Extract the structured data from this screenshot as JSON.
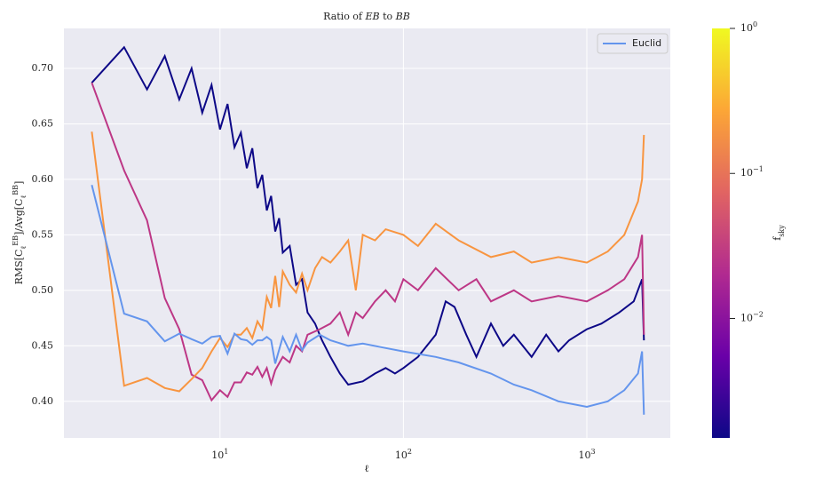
{
  "chart_data": {
    "type": "line",
    "title": "Ratio of ^{EB} to ^{BB}",
    "xlabel": "ℓ",
    "ylabel": "RMS[C_{ℓ}^{EB}]/Avg[C_{ℓ}^{BB}]",
    "xscale": "log",
    "xlim": [
      1.41,
      2850
    ],
    "ylim": [
      0.367,
      0.736
    ],
    "xticks": [
      {
        "value": 10,
        "label": "10^{1}"
      },
      {
        "value": 100,
        "label": "10^{2}"
      },
      {
        "value": 1000,
        "label": "10^{3}"
      }
    ],
    "yticks": [
      {
        "value": 0.4,
        "label": "0.40"
      },
      0.45,
      {
        "value": 0.5,
        "label": "0.50"
      },
      0.55,
      {
        "value": 0.6,
        "label": "0.60"
      },
      0.65,
      {
        "value": 0.7,
        "label": "0.70"
      }
    ],
    "grid": true,
    "legend": "upper right",
    "series": [
      {
        "color": "#0d0887",
        "x": [
          2,
          3,
          4,
          5,
          6,
          7,
          8,
          9,
          10,
          11,
          12,
          13,
          14,
          15,
          16,
          17,
          18,
          19,
          20,
          21,
          22,
          24,
          26,
          28,
          30,
          33,
          36,
          40,
          45,
          50,
          60,
          70,
          80,
          90,
          100,
          120,
          150,
          170,
          190,
          220,
          250,
          300,
          350,
          400,
          500,
          600,
          700,
          800,
          1000,
          1200,
          1500,
          1800,
          2000,
          2048
        ],
        "values": [
          0.687,
          0.719,
          0.681,
          0.711,
          0.672,
          0.7,
          0.66,
          0.685,
          0.645,
          0.668,
          0.629,
          0.642,
          0.61,
          0.628,
          0.592,
          0.604,
          0.572,
          0.585,
          0.553,
          0.565,
          0.534,
          0.54,
          0.505,
          0.51,
          0.48,
          0.47,
          0.455,
          0.44,
          0.425,
          0.415,
          0.418,
          0.425,
          0.43,
          0.425,
          0.43,
          0.44,
          0.46,
          0.49,
          0.485,
          0.46,
          0.44,
          0.47,
          0.45,
          0.46,
          0.44,
          0.46,
          0.445,
          0.455,
          0.465,
          0.47,
          0.48,
          0.49,
          0.51,
          0.455
        ]
      },
      {
        "color": "#bd3786",
        "x": [
          2,
          3,
          4,
          5,
          6,
          7,
          8,
          9,
          10,
          11,
          12,
          13,
          14,
          15,
          16,
          17,
          18,
          19,
          20,
          22,
          24,
          26,
          28,
          30,
          35,
          40,
          45,
          50,
          55,
          60,
          70,
          80,
          90,
          100,
          120,
          150,
          200,
          250,
          300,
          400,
          500,
          700,
          1000,
          1300,
          1600,
          1900,
          2000,
          2048
        ],
        "values": [
          0.687,
          0.608,
          0.563,
          0.493,
          0.465,
          0.424,
          0.419,
          0.401,
          0.41,
          0.404,
          0.417,
          0.417,
          0.426,
          0.424,
          0.431,
          0.422,
          0.43,
          0.416,
          0.428,
          0.44,
          0.435,
          0.45,
          0.445,
          0.46,
          0.465,
          0.47,
          0.48,
          0.46,
          0.48,
          0.475,
          0.49,
          0.5,
          0.49,
          0.51,
          0.5,
          0.52,
          0.5,
          0.51,
          0.49,
          0.5,
          0.49,
          0.495,
          0.49,
          0.5,
          0.51,
          0.53,
          0.55,
          0.46
        ]
      },
      {
        "color": "#f89540",
        "x": [
          2,
          3,
          4,
          5,
          6,
          7,
          8,
          9,
          10,
          11,
          12,
          13,
          14,
          15,
          16,
          17,
          18,
          19,
          20,
          21,
          22,
          24,
          26,
          28,
          30,
          33,
          36,
          40,
          45,
          50,
          55,
          60,
          70,
          80,
          100,
          120,
          150,
          200,
          300,
          400,
          500,
          700,
          1000,
          1300,
          1600,
          1900,
          2000,
          2048
        ],
        "values": [
          0.643,
          0.414,
          0.421,
          0.412,
          0.409,
          0.42,
          0.43,
          0.445,
          0.457,
          0.449,
          0.46,
          0.46,
          0.466,
          0.457,
          0.472,
          0.465,
          0.494,
          0.484,
          0.513,
          0.485,
          0.517,
          0.505,
          0.498,
          0.515,
          0.5,
          0.52,
          0.53,
          0.525,
          0.535,
          0.545,
          0.5,
          0.55,
          0.545,
          0.555,
          0.55,
          0.54,
          0.56,
          0.545,
          0.53,
          0.535,
          0.525,
          0.53,
          0.525,
          0.535,
          0.55,
          0.58,
          0.6,
          0.64
        ]
      },
      {
        "name": "Euclid",
        "color": "#6495ed",
        "x": [
          2,
          3,
          4,
          5,
          6,
          7,
          8,
          9,
          10,
          11,
          12,
          13,
          14,
          15,
          16,
          17,
          18,
          19,
          20,
          22,
          24,
          26,
          28,
          30,
          35,
          40,
          50,
          60,
          80,
          100,
          150,
          200,
          300,
          400,
          500,
          700,
          1000,
          1300,
          1600,
          1900,
          2000,
          2048
        ],
        "values": [
          0.595,
          0.479,
          0.472,
          0.454,
          0.461,
          0.456,
          0.452,
          0.458,
          0.459,
          0.443,
          0.461,
          0.456,
          0.455,
          0.451,
          0.455,
          0.455,
          0.458,
          0.455,
          0.434,
          0.458,
          0.445,
          0.46,
          0.446,
          0.453,
          0.46,
          0.455,
          0.45,
          0.452,
          0.448,
          0.445,
          0.44,
          0.435,
          0.425,
          0.415,
          0.41,
          0.4,
          0.395,
          0.4,
          0.41,
          0.425,
          0.445,
          0.388
        ]
      }
    ],
    "colorbar": {
      "label": "f_{sky}",
      "scale": "log",
      "lim": [
        0.0015,
        1
      ],
      "ticks": [
        {
          "value": 0.01,
          "label": "10^{−2}"
        },
        {
          "value": 0.1,
          "label": "10^{−1}"
        },
        {
          "value": 1,
          "label": "10^{0}"
        }
      ]
    }
  }
}
